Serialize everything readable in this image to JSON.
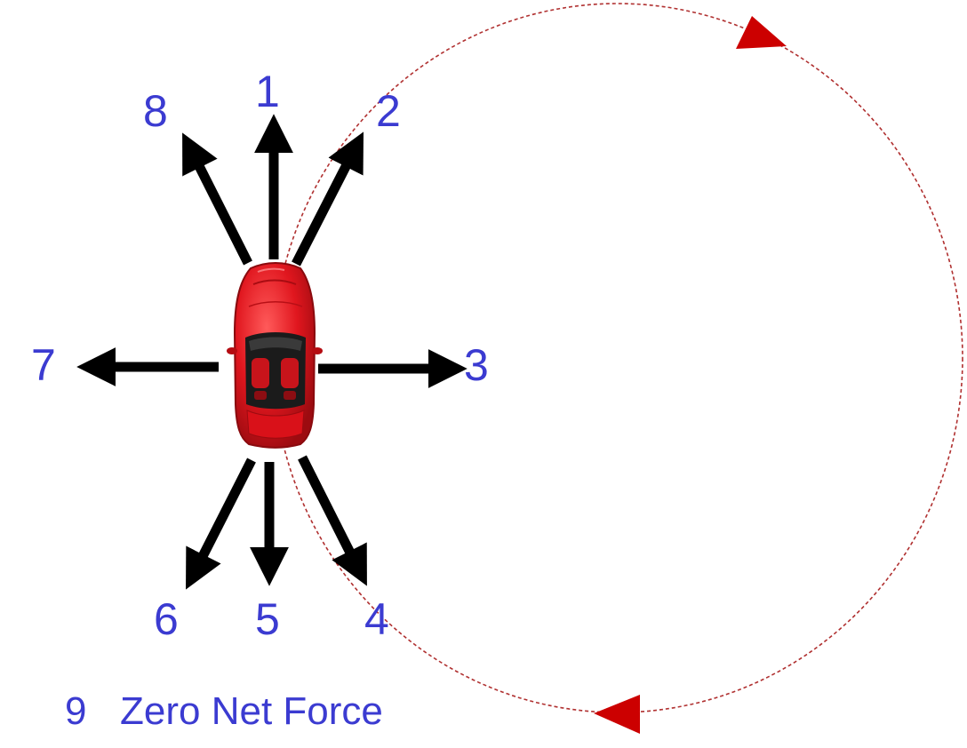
{
  "labels": {
    "n1": "1",
    "n2": "2",
    "n3": "3",
    "n4": "4",
    "n5": "5",
    "n6": "6",
    "n7": "7",
    "n8": "8",
    "n9": "9"
  },
  "caption": "Zero Net Force",
  "colors": {
    "label": "#3b3bd1",
    "arrow": "#000000",
    "path": "#b03030",
    "path_arrowhead": "#cc0000",
    "car_body": "#e0161e"
  },
  "icons": {
    "car": "red-convertible-car-top-view"
  }
}
